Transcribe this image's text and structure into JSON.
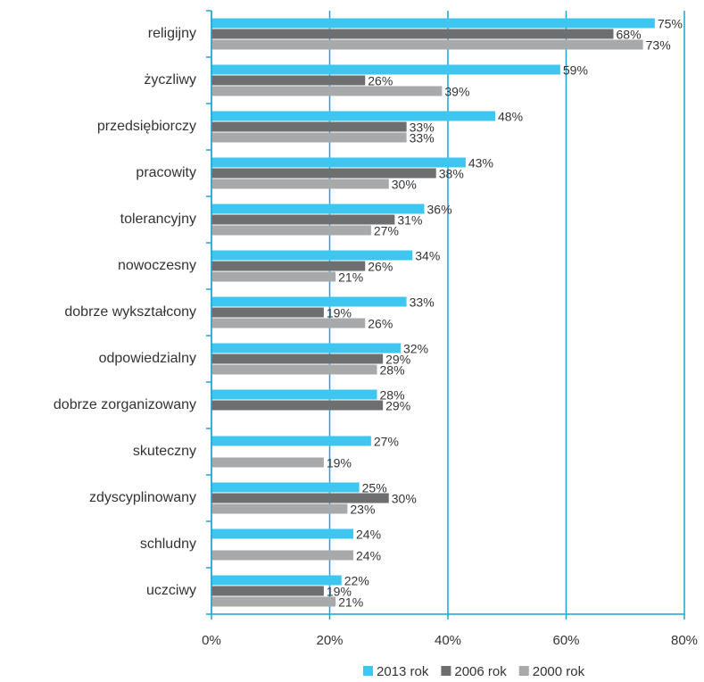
{
  "chart_data": {
    "type": "hbar",
    "categories": [
      "religijny",
      "życzliwy",
      "przedsiębiorczy",
      "pracowity",
      "tolerancyjny",
      "nowoczesny",
      "dobrze wykształcony",
      "odpowiedzialny",
      "dobrze zorganizowany",
      "skuteczny",
      "zdyscyplinowany",
      "schludny",
      "uczciwy"
    ],
    "series": [
      {
        "name": "2013 rok",
        "color": "#3ec6f0",
        "values": [
          75,
          59,
          48,
          43,
          36,
          34,
          33,
          32,
          28,
          27,
          25,
          24,
          22
        ],
        "value_labels": [
          "75%",
          "59%",
          "48%",
          "43%",
          "36%",
          "34%",
          "33%",
          "32%",
          "28%",
          "27%",
          "25%",
          "24%",
          "22%"
        ]
      },
      {
        "name": "2006 rok",
        "color": "#6d6e70",
        "values": [
          68,
          26,
          33,
          38,
          31,
          26,
          19,
          29,
          29,
          null,
          30,
          null,
          19
        ],
        "value_labels": [
          "68%",
          "26%",
          "33%",
          "38%",
          "31%",
          "26%",
          "19%",
          "29%",
          "29%",
          null,
          "30%",
          null,
          "19%"
        ]
      },
      {
        "name": "2000 rok",
        "color": "#a7a9ab",
        "values": [
          73,
          39,
          33,
          30,
          27,
          21,
          26,
          28,
          null,
          19,
          23,
          24,
          21
        ],
        "value_labels": [
          "73%",
          "39%",
          "33%",
          "30%",
          "27%",
          "21%",
          "26%",
          "28%",
          null,
          "19%",
          "23%",
          "24%",
          "21%"
        ]
      }
    ],
    "xlim": [
      0,
      80
    ],
    "xticks": [
      {
        "value": 0,
        "label": "0%"
      },
      {
        "value": 20,
        "label": "20%"
      },
      {
        "value": 40,
        "label": "40%"
      },
      {
        "value": 60,
        "label": "60%"
      },
      {
        "value": 80,
        "label": "80%"
      }
    ],
    "grid": true,
    "legend": "bottom"
  }
}
